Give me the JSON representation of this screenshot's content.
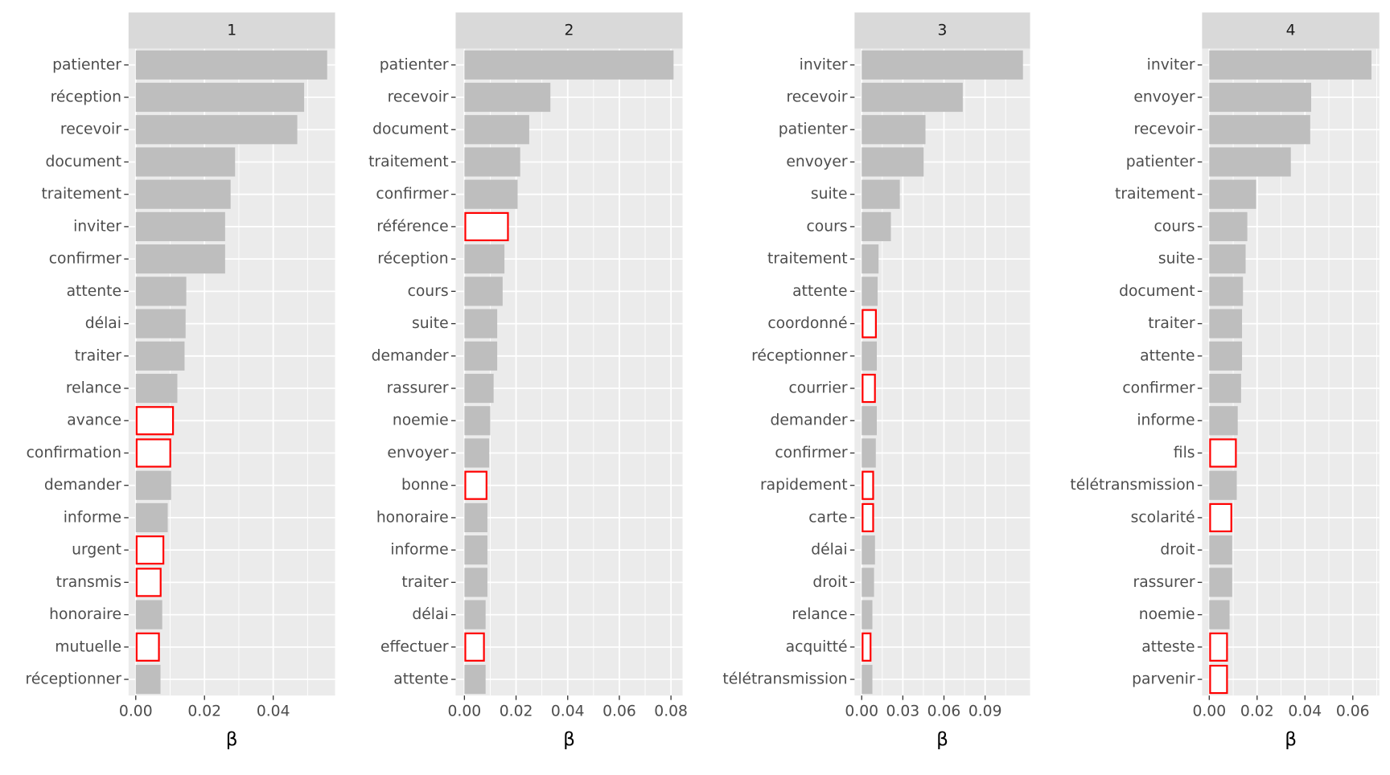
{
  "chart_data": [
    {
      "type": "bar",
      "orientation": "horizontal",
      "title": "1",
      "x_label": "β",
      "grid": true,
      "color": "#bebebe",
      "highlight_color": "#ff0000",
      "categories": [
        "patienter",
        "réception",
        "recevoir",
        "document",
        "traitement",
        "inviter",
        "confirmer",
        "attente",
        "délai",
        "traiter",
        "relance",
        "avance",
        "confirmation",
        "demander",
        "informe",
        "urgent",
        "transmis",
        "honoraire",
        "mutuelle",
        "réceptionner"
      ],
      "values": [
        0.0557,
        0.049,
        0.047,
        0.0289,
        0.0276,
        0.026,
        0.026,
        0.0147,
        0.0145,
        0.0142,
        0.0121,
        0.0111,
        0.0103,
        0.0103,
        0.0093,
        0.0083,
        0.0075,
        0.0077,
        0.007,
        0.0072
      ],
      "highlight": [
        false,
        false,
        false,
        false,
        false,
        false,
        false,
        false,
        false,
        false,
        false,
        true,
        true,
        false,
        false,
        true,
        true,
        false,
        true,
        false
      ],
      "xlim": [
        -0.0021,
        0.058
      ],
      "xticks": [
        {
          "value": 0,
          "label": "0.00"
        },
        0.02,
        0.04
      ]
    },
    {
      "type": "bar",
      "orientation": "horizontal",
      "title": "2",
      "x_label": "β",
      "grid": true,
      "color": "#bebebe",
      "highlight_color": "#ff0000",
      "categories": [
        "patienter",
        "recevoir",
        "document",
        "traitement",
        "confirmer",
        "référence",
        "réception",
        "cours",
        "suite",
        "demander",
        "rassurer",
        "noemie",
        "envoyer",
        "bonne",
        "honoraire",
        "informe",
        "traiter",
        "délai",
        "effectuer",
        "attente"
      ],
      "values": [
        0.081,
        0.0333,
        0.0251,
        0.0216,
        0.0206,
        0.0172,
        0.0155,
        0.0148,
        0.0127,
        0.0127,
        0.0113,
        0.01,
        0.0096,
        0.0089,
        0.0089,
        0.0089,
        0.0089,
        0.0082,
        0.0079,
        0.0082
      ],
      "highlight": [
        false,
        false,
        false,
        false,
        false,
        true,
        false,
        false,
        false,
        false,
        false,
        false,
        false,
        true,
        false,
        false,
        false,
        false,
        true,
        false
      ],
      "xlim": [
        -0.0034,
        0.0845
      ],
      "xticks": [
        {
          "value": 0,
          "label": "0.00"
        },
        0.02,
        0.04,
        0.06,
        0.08
      ]
    },
    {
      "type": "bar",
      "orientation": "horizontal",
      "title": "3",
      "x_label": "β",
      "grid": true,
      "color": "#bebebe",
      "highlight_color": "#ff0000",
      "categories": [
        "inviter",
        "recevoir",
        "patienter",
        "envoyer",
        "suite",
        "cours",
        "traitement",
        "attente",
        "coordonné",
        "réceptionner",
        "courrier",
        "demander",
        "confirmer",
        "rapidement",
        "carte",
        "délai",
        "droit",
        "relance",
        "acquitté",
        "télétransmission"
      ],
      "values": [
        0.1176,
        0.0737,
        0.0465,
        0.0452,
        0.0278,
        0.0213,
        0.0123,
        0.0116,
        0.011,
        0.011,
        0.0103,
        0.011,
        0.0103,
        0.009,
        0.009,
        0.0097,
        0.009,
        0.0078,
        0.0071,
        0.0078
      ],
      "highlight": [
        false,
        false,
        false,
        false,
        false,
        false,
        false,
        false,
        true,
        false,
        true,
        false,
        false,
        true,
        true,
        false,
        false,
        false,
        true,
        false
      ],
      "xlim": [
        -0.0052,
        0.1228
      ],
      "xticks": [
        {
          "value": 0,
          "label": "0.00"
        },
        0.03,
        0.06,
        0.09
      ]
    },
    {
      "type": "bar",
      "orientation": "horizontal",
      "title": "4",
      "x_label": "β",
      "grid": true,
      "color": "#bebebe",
      "highlight_color": "#ff0000",
      "categories": [
        "inviter",
        "envoyer",
        "recevoir",
        "patienter",
        "traitement",
        "cours",
        "suite",
        "document",
        "traiter",
        "attente",
        "confirmer",
        "informe",
        "fils",
        "télétransmission",
        "scolarité",
        "droit",
        "rassurer",
        "noemie",
        "atteste",
        "parvenir"
      ],
      "values": [
        0.0678,
        0.0426,
        0.0422,
        0.0341,
        0.0196,
        0.0159,
        0.0152,
        0.0141,
        0.0137,
        0.0137,
        0.0133,
        0.0119,
        0.0115,
        0.0115,
        0.0096,
        0.0096,
        0.0096,
        0.0085,
        0.0078,
        0.0078
      ],
      "highlight": [
        false,
        false,
        false,
        false,
        false,
        false,
        false,
        false,
        false,
        false,
        false,
        false,
        true,
        false,
        true,
        false,
        false,
        false,
        true,
        true
      ],
      "xlim": [
        -0.003,
        0.0711
      ],
      "xticks": [
        {
          "value": 0,
          "label": "0.00"
        },
        0.02,
        0.04,
        0.06
      ]
    }
  ]
}
